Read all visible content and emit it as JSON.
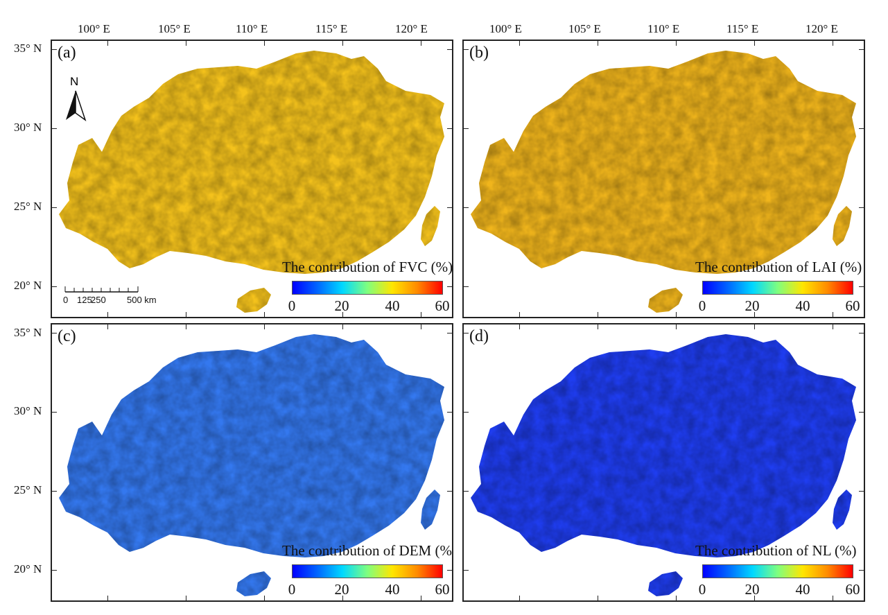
{
  "lon_labels": [
    "100° E",
    "105° E",
    "110° E",
    "115° E",
    "120° E"
  ],
  "lat_labels": [
    "35° N",
    "30° N",
    "25° N",
    "20° N"
  ],
  "panels": [
    {
      "id": "a",
      "label": "(a)",
      "colorbar_title": "The contribution of FVC (%)",
      "colorbar_ticks": [
        "0",
        "20",
        "40",
        "60"
      ],
      "base_color": "#f4c21c"
    },
    {
      "id": "b",
      "label": "(b)",
      "colorbar_title": "The contribution of LAI (%)",
      "colorbar_ticks": [
        "0",
        "20",
        "40",
        "60"
      ],
      "base_color": "#f0b51c"
    },
    {
      "id": "c",
      "label": "(c)",
      "colorbar_title": "The contribution of DEM (%)",
      "colorbar_ticks": [
        "0",
        "20",
        "40",
        "60"
      ],
      "base_color": "#3478ef"
    },
    {
      "id": "d",
      "label": "(d)",
      "colorbar_title": "The contribution of NL (%)",
      "colorbar_ticks": [
        "0",
        "20",
        "40",
        "60"
      ],
      "base_color": "#1f3df0"
    }
  ],
  "north_arrow": {
    "label": "N"
  },
  "scale_bar": {
    "ticks": [
      "0",
      "125",
      "250",
      "500 km"
    ]
  },
  "colormap": [
    "#0000ff",
    "#0066ff",
    "#00d8ff",
    "#7fff7f",
    "#ffe600",
    "#ff8a00",
    "#ff0000"
  ]
}
